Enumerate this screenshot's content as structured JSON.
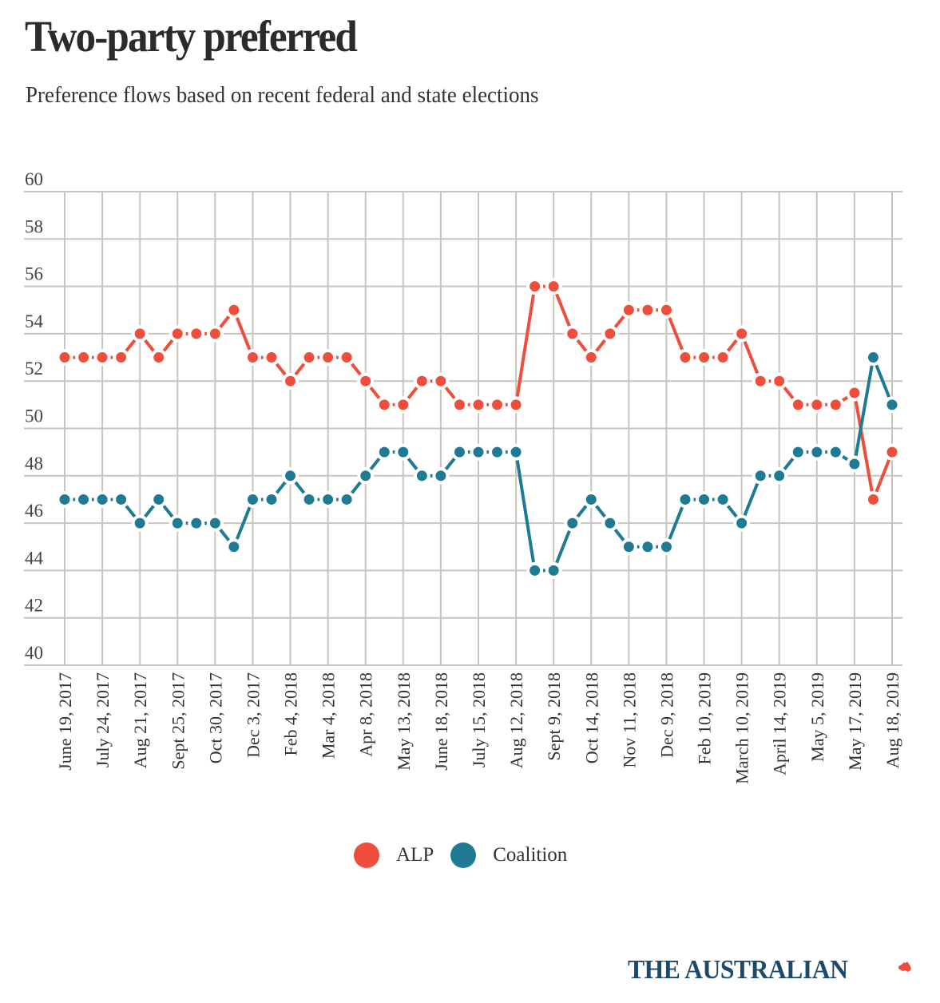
{
  "header": {
    "title": "Two-party preferred",
    "subtitle": "Preference flows based on recent federal and state elections"
  },
  "legend": {
    "items": [
      {
        "label": "ALP",
        "color": "#ee4e3b"
      },
      {
        "label": "Coalition",
        "color": "#1f7b93"
      }
    ]
  },
  "branding": {
    "logo_text": "THE AUSTRALIAN",
    "logo_icon": "australia-map-icon",
    "logo_color": "#1b4a6b",
    "icon_color": "#ee4e3b"
  },
  "chart_data": {
    "type": "line",
    "title": "Two-party preferred",
    "subtitle": "Preference flows based on recent federal and state elections",
    "xlabel": "",
    "ylabel": "",
    "ylim": [
      40,
      60
    ],
    "yticks": [
      40,
      42,
      44,
      46,
      48,
      50,
      52,
      54,
      56,
      58,
      60
    ],
    "grid": true,
    "legend_position": "bottom-center",
    "x_tick_labels": [
      "June 19, 2017",
      "July 24, 2017",
      "Aug 21, 2017",
      "Sept 25, 2017",
      "Oct 30, 2017",
      "Dec 3, 2017",
      "Feb 4, 2018",
      "Mar 4, 2018",
      "Apr 8, 2018",
      "May 13, 2018",
      "June 18, 2018",
      "July 15, 2018",
      "Aug 12, 2018",
      "Sept 9, 2018",
      "Oct 14, 2018",
      "Nov 11, 2018",
      "Dec 9, 2018",
      "Feb 10, 2019",
      "March 10, 2019",
      "April 14, 2019",
      "May 5, 2019",
      "May 17, 2019",
      "Aug 18, 2019"
    ],
    "x_tick_every": 2,
    "series": [
      {
        "name": "ALP",
        "color": "#ee4e3b",
        "values": [
          53,
          53,
          53,
          53,
          54,
          53,
          54,
          54,
          54,
          55,
          53,
          53,
          52,
          53,
          53,
          53,
          52,
          51,
          51,
          52,
          52,
          51,
          51,
          51,
          51,
          56,
          56,
          54,
          53,
          54,
          55,
          55,
          55,
          53,
          53,
          53,
          54,
          52,
          52,
          51,
          51,
          51,
          51.5,
          47,
          49
        ]
      },
      {
        "name": "Coalition",
        "color": "#1f7b93",
        "values": [
          47,
          47,
          47,
          47,
          46,
          47,
          46,
          46,
          46,
          45,
          47,
          47,
          48,
          47,
          47,
          47,
          48,
          49,
          49,
          48,
          48,
          49,
          49,
          49,
          49,
          44,
          44,
          46,
          47,
          46,
          45,
          45,
          45,
          47,
          47,
          47,
          46,
          48,
          48,
          49,
          49,
          49,
          48.5,
          53,
          51
        ]
      }
    ]
  }
}
